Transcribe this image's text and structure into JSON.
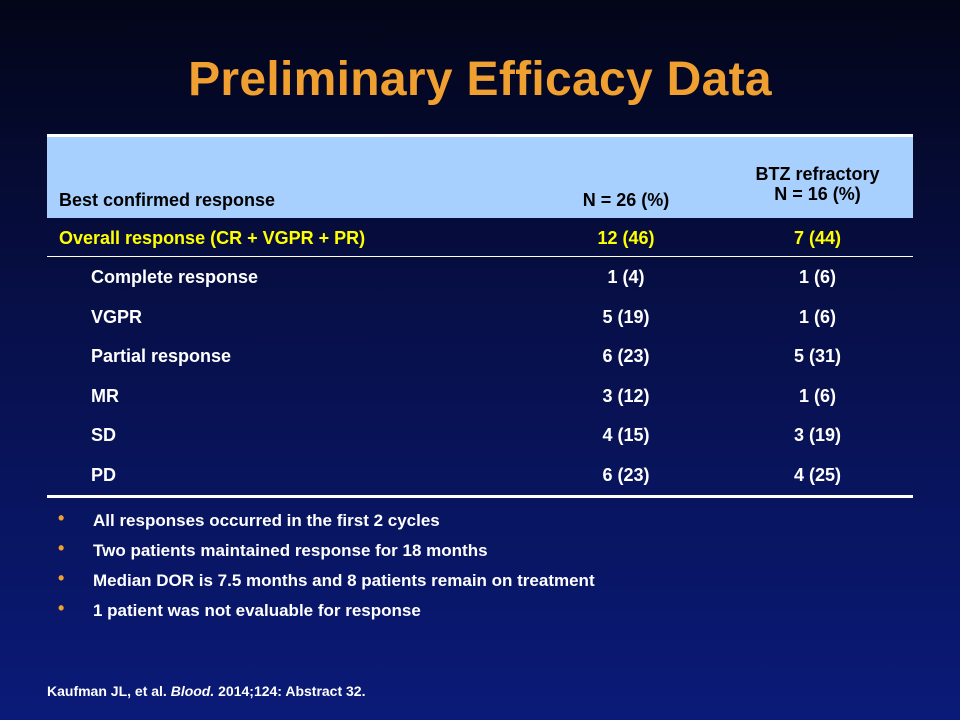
{
  "title": "Preliminary Efficacy Data",
  "table": {
    "headers": {
      "col1": "Best confirmed response",
      "col2": "N = 26 (%)",
      "col3_line1": "BTZ refractory",
      "col3_line2": "N = 16 (%)"
    },
    "overall": {
      "label": "Overall response (CR + VGPR + PR)",
      "n26": "12 (46)",
      "btz": "7 (44)"
    },
    "rows": [
      {
        "label": "Complete response",
        "n26": "1 (4)",
        "btz": "1 (6)"
      },
      {
        "label": "VGPR",
        "n26": "5 (19)",
        "btz": "1 (6)"
      },
      {
        "label": "Partial response",
        "n26": "6 (23)",
        "btz": "5 (31)"
      },
      {
        "label": "MR",
        "n26": "3 (12)",
        "btz": "1 (6)"
      },
      {
        "label": "SD",
        "n26": "4 (15)",
        "btz": "3 (19)"
      },
      {
        "label": "PD",
        "n26": "6 (23)",
        "btz": "4 (25)"
      }
    ]
  },
  "bullets": [
    "All responses occurred in the first 2 cycles",
    "Two patients maintained response for 18 months",
    "Median DOR is 7.5 months and 8 patients remain on treatment",
    "1 patient was not evaluable for response"
  ],
  "bullet_glyph": "•",
  "citation": {
    "authors": "Kaufman JL, et al. ",
    "journal": "Blood.",
    "rest": " 2014;124: Abstract 32."
  },
  "colors": {
    "title": "#f0a030",
    "header_bg": "#a8d0ff",
    "highlight_row": "#ffff00",
    "bullet": "#f0a030"
  }
}
